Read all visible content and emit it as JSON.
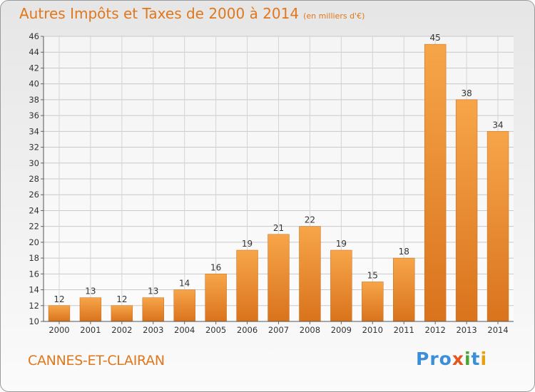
{
  "chart_data": {
    "type": "bar",
    "title": "Autres Impôts et Taxes de 2000 à 2014",
    "subtitle": "(en milliers d'€)",
    "categories": [
      "2000",
      "2001",
      "2002",
      "2003",
      "2004",
      "2005",
      "2006",
      "2007",
      "2008",
      "2009",
      "2010",
      "2011",
      "2012",
      "2013",
      "2014"
    ],
    "values": [
      12,
      13,
      12,
      13,
      14,
      16,
      19,
      21,
      22,
      19,
      15,
      18,
      45,
      38,
      34
    ],
    "ylim": [
      10,
      46
    ],
    "yticks": [
      10,
      12,
      14,
      16,
      18,
      20,
      22,
      24,
      26,
      28,
      30,
      32,
      34,
      36,
      38,
      40,
      42,
      44,
      46
    ],
    "grid": true,
    "bar_color": "#f0912e"
  },
  "footer": {
    "commune": "CANNES-ET-CLAIRAN",
    "logo": [
      "Pro",
      "x",
      "i",
      "t",
      "i"
    ]
  }
}
